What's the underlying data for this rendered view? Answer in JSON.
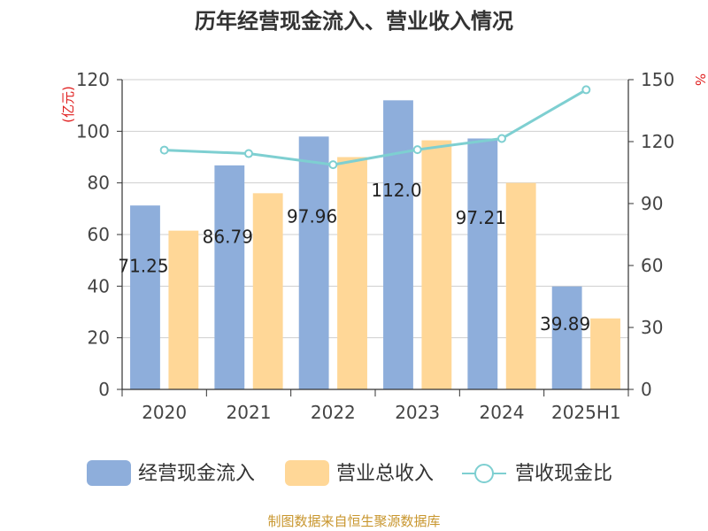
{
  "chart_data": {
    "type": "bar",
    "title": "历年经营现金流入、营业收入情况",
    "left_unit": "(亿元)",
    "right_unit": "%",
    "categories": [
      "2020",
      "2021",
      "2022",
      "2023",
      "2024",
      "2025H1"
    ],
    "ylim": [
      0,
      120
    ],
    "y_ticks": [
      "0",
      "20",
      "40",
      "60",
      "80",
      "100",
      "120"
    ],
    "y2lim": [
      0,
      150
    ],
    "y2_ticks": [
      "0",
      "30",
      "60",
      "90",
      "120",
      "150"
    ],
    "grid": true,
    "legend_position": "bottom",
    "series": [
      {
        "name": "经营现金流入",
        "kind": "bar",
        "axis": "left",
        "color": "#8eaedb",
        "values": [
          71.25,
          86.79,
          97.96,
          112.0,
          97.21,
          39.89
        ],
        "labels": [
          "71.25",
          "86.79",
          "97.96",
          "112.0",
          "97.21",
          "39.89"
        ]
      },
      {
        "name": "营业总收入",
        "kind": "bar",
        "axis": "left",
        "color": "#ffd797",
        "values": [
          61.5,
          76.0,
          90.0,
          96.5,
          80.0,
          27.5
        ]
      },
      {
        "name": "营收现金比",
        "kind": "line",
        "axis": "right",
        "color": "#7ecfd1",
        "values": [
          115.9,
          114.2,
          108.8,
          116.1,
          121.5,
          145.1
        ]
      }
    ],
    "source": "制图数据来自恒生聚源数据库"
  }
}
